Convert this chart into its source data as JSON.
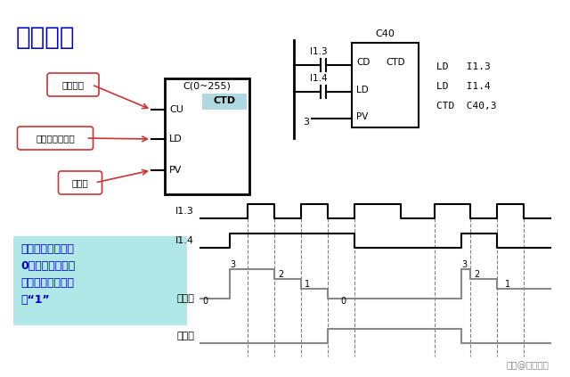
{
  "title": "减计数器",
  "bg_color": "#ffffff",
  "title_color": "#0000cc",
  "title_fontsize": 20,
  "box_label": "C(0~255)",
  "box_bg": "#b0d8e0",
  "ctd_bg": "#b0d8e0",
  "note_bg": "#b0e8e8",
  "note_color": "#0000cc",
  "note_text": "计数器当前值等于\n0时，停止计数，\n同时计数器位被置\n位“1”",
  "ladder_label": "C40",
  "code_lines": [
    "LD   I1.3",
    "LD   I1.4",
    "CTD  C40,3"
  ],
  "watermark": "头条@荣久科技"
}
